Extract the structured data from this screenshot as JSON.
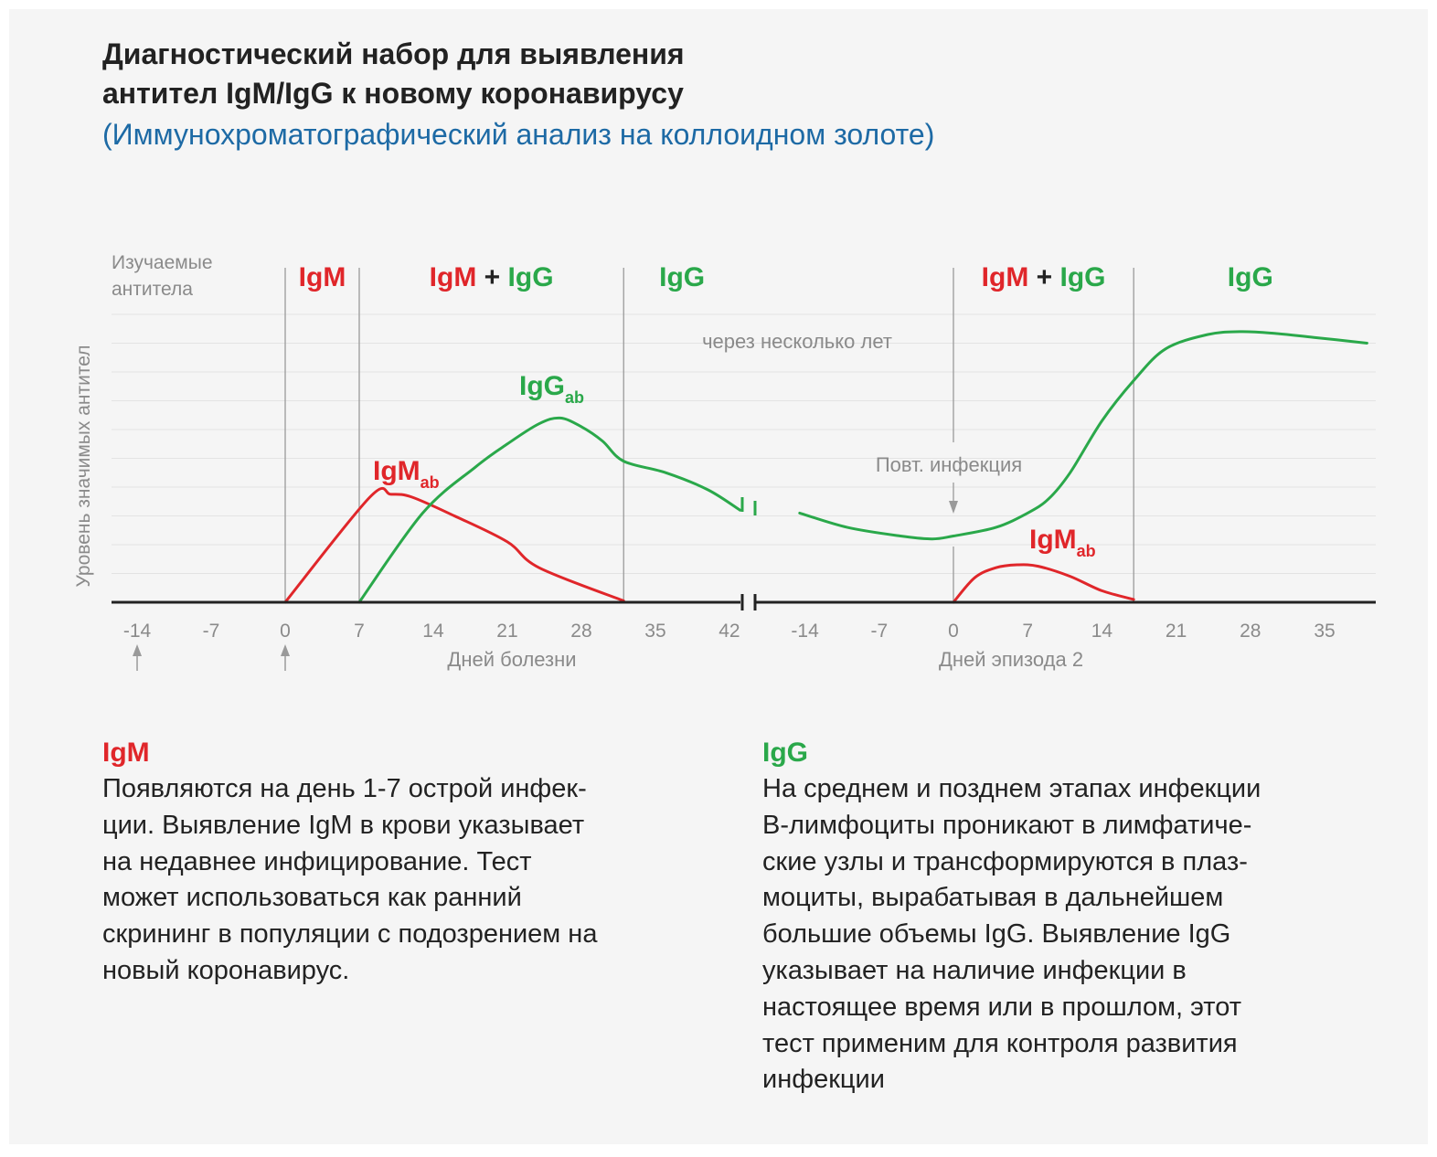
{
  "title": {
    "line1": "Диагностический набор для выявления",
    "line2": "антител IgM/IgG к новому коронавирусу",
    "subtitle": "(Иммунохроматографический анализ на коллоидном золоте)"
  },
  "colors": {
    "igm": "#e0262a",
    "igg": "#2aa84a",
    "axis": "#222222",
    "grid": "#e3e3e3",
    "divider": "#9a9a9a",
    "text_gray": "#8a8a8a",
    "subtitle": "#1d6aa5"
  },
  "chart_data": {
    "type": "line",
    "ylabel": "Уровень значимых антител",
    "phase_header_label": "Изучаемые\nантитела",
    "panels": [
      {
        "xlabel": "Дней болезни",
        "ticks": [
          -14,
          -7,
          0,
          7,
          14,
          21,
          28,
          35,
          42
        ],
        "x_range": [
          -14,
          43.5
        ]
      },
      {
        "xlabel": "Дней эпизода 2",
        "ticks": [
          -14,
          -7,
          0,
          7,
          14,
          21,
          28,
          35
        ],
        "x_range": [
          -14.5,
          39
        ]
      }
    ],
    "y_range": [
      0,
      10
    ],
    "grid": true,
    "phases": [
      {
        "panel": 0,
        "from": 0,
        "to": 7,
        "parts": [
          {
            "text": "IgM",
            "color": "igm"
          }
        ]
      },
      {
        "panel": 0,
        "from": 7,
        "to": 32,
        "parts": [
          {
            "text": "IgM",
            "color": "igm"
          },
          {
            "text": " + ",
            "color": "axis"
          },
          {
            "text": "IgG",
            "color": "igg"
          }
        ]
      },
      {
        "panel": 0,
        "from": 32,
        "to": 43.5,
        "parts": [
          {
            "text": "IgG",
            "color": "igg"
          }
        ]
      },
      {
        "panel": 1,
        "from": 0,
        "to": 17,
        "parts": [
          {
            "text": "IgM",
            "color": "igm"
          },
          {
            "text": " + ",
            "color": "axis"
          },
          {
            "text": "IgG",
            "color": "igg"
          }
        ]
      },
      {
        "panel": 1,
        "from": 17,
        "to": 39,
        "parts": [
          {
            "text": "IgG",
            "color": "igg"
          }
        ]
      }
    ],
    "phase_dividers": [
      {
        "panel": 0,
        "x": 0
      },
      {
        "panel": 0,
        "x": 7
      },
      {
        "panel": 0,
        "x": 32
      },
      {
        "panel": 1,
        "x": 17
      }
    ],
    "series": [
      {
        "name": "IgM",
        "color": "igm",
        "label": {
          "main": "IgM",
          "sub": "ab"
        },
        "segments": [
          {
            "panel": 0,
            "points": [
              [
                0,
                0
              ],
              [
                8,
                3.65
              ],
              [
                10,
                3.75
              ],
              [
                12,
                3.65
              ],
              [
                16,
                3.0
              ],
              [
                21,
                2.1
              ],
              [
                24,
                1.2
              ],
              [
                32,
                0.05
              ]
            ]
          },
          {
            "panel": 1,
            "points": [
              [
                0,
                0
              ],
              [
                2,
                0.85
              ],
              [
                4,
                1.2
              ],
              [
                6,
                1.3
              ],
              [
                8,
                1.25
              ],
              [
                11,
                0.9
              ],
              [
                14,
                0.4
              ],
              [
                17,
                0.1
              ]
            ]
          }
        ]
      },
      {
        "name": "IgG",
        "color": "igg",
        "label": {
          "main": "IgG",
          "sub": "ab"
        },
        "segments": [
          {
            "panel": 0,
            "points": [
              [
                7,
                0
              ],
              [
                13,
                3.1
              ],
              [
                18,
                4.7
              ],
              [
                21,
                5.5
              ],
              [
                24,
                6.2
              ],
              [
                26,
                6.4
              ],
              [
                28,
                6.1
              ],
              [
                30,
                5.6
              ],
              [
                32,
                4.9
              ],
              [
                36,
                4.5
              ],
              [
                40,
                3.9
              ],
              [
                43,
                3.2
              ]
            ]
          },
          {
            "panel": 1,
            "points": [
              [
                -14.5,
                3.1
              ],
              [
                -10,
                2.6
              ],
              [
                -5,
                2.3
              ],
              [
                -2,
                2.2
              ],
              [
                0,
                2.3
              ],
              [
                4,
                2.6
              ],
              [
                7,
                3.1
              ],
              [
                9,
                3.6
              ],
              [
                11,
                4.5
              ],
              [
                14,
                6.3
              ],
              [
                17,
                7.7
              ],
              [
                20,
                8.8
              ],
              [
                24,
                9.3
              ],
              [
                27,
                9.4
              ],
              [
                30,
                9.35
              ],
              [
                34,
                9.2
              ],
              [
                39,
                9.0
              ]
            ]
          }
        ]
      }
    ],
    "annotations": {
      "years_later": "через несколько лет",
      "reinfection": "Повт. инфекция",
      "reinfection_panel": 1,
      "reinfection_x": 0
    },
    "start_arrows": [
      {
        "panel": 0,
        "x": -14
      },
      {
        "panel": 0,
        "x": 0
      }
    ],
    "axis_break": true
  },
  "sections": {
    "igm": {
      "heading": "IgM",
      "text": "Появляются на день 1-7 острой инфек-\nции. Выявление IgM в крови указывает\nна недавнее инфицирование. Тест\nможет использоваться как ранний\nскрининг в популяции с подозрением на\nновый коронавирус."
    },
    "igg": {
      "heading": "IgG",
      "text": "На среднем и позднем этапах инфекции\nВ-лимфоциты проникают в лимфатиче-\nские узлы и трансформируются в плаз-\nмоциты, вырабатывая в дальнейшем\nбольшие объемы IgG. Выявление IgG\nуказывает на наличие инфекции в\nнастоящее время или в прошлом, этот\nтест применим для контроля развития\nинфекции"
    }
  }
}
